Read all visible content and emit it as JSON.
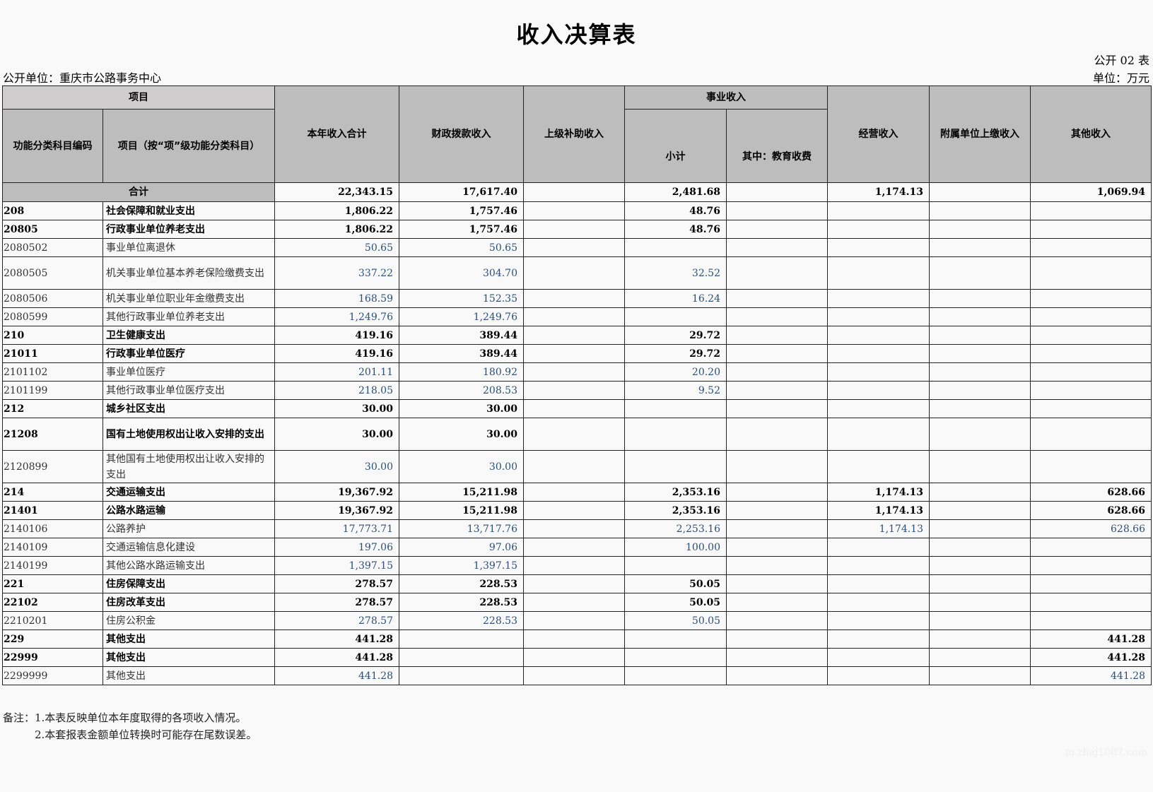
{
  "title": "收入决算表",
  "form_no": "公开 02 表",
  "unit_org": "公开单位：重庆市公路事务中心",
  "unit": "单位：万元",
  "headers": {
    "project": "项目",
    "code": "功能分类科目编码",
    "item": "项目（按“项”级功能分类科目）",
    "total": "本年收入合计",
    "fiscal": "财政拨款收入",
    "superior": "上级补助收入",
    "business": "事业收入",
    "subtotal": "小计",
    "edu": "其中：教育收费",
    "operating": "经营收入",
    "affiliated": "附属单位上缴收入",
    "other": "其他收入"
  },
  "total_row": {
    "label": "合计",
    "total": "22,343.15",
    "fiscal": "17,617.40",
    "superior": "",
    "subtotal": "2,481.68",
    "edu": "",
    "operating": "1,174.13",
    "affiliated": "",
    "other": "1,069.94"
  },
  "rows": [
    {
      "code": "208",
      "name": "社会保障和就业支出",
      "total": "1,806.22",
      "fiscal": "1,757.46",
      "subtotal": "48.76",
      "operating": "",
      "other": "",
      "bold": true
    },
    {
      "code": "20805",
      "name": "行政事业单位养老支出",
      "total": "1,806.22",
      "fiscal": "1,757.46",
      "subtotal": "48.76",
      "operating": "",
      "other": "",
      "bold": true
    },
    {
      "code": "2080502",
      "name": "事业单位离退休",
      "total": "50.65",
      "fiscal": "50.65",
      "subtotal": "",
      "operating": "",
      "other": ""
    },
    {
      "code": "2080505",
      "name": "机关事业单位基本养老保险缴费支出",
      "total": "337.22",
      "fiscal": "304.70",
      "subtotal": "32.52",
      "operating": "",
      "other": "",
      "double": true
    },
    {
      "code": "2080506",
      "name": "机关事业单位职业年金缴费支出",
      "total": "168.59",
      "fiscal": "152.35",
      "subtotal": "16.24",
      "operating": "",
      "other": ""
    },
    {
      "code": "2080599",
      "name": "其他行政事业单位养老支出",
      "total": "1,249.76",
      "fiscal": "1,249.76",
      "subtotal": "",
      "operating": "",
      "other": ""
    },
    {
      "code": "210",
      "name": "卫生健康支出",
      "total": "419.16",
      "fiscal": "389.44",
      "subtotal": "29.72",
      "operating": "",
      "other": "",
      "bold": true
    },
    {
      "code": "21011",
      "name": "行政事业单位医疗",
      "total": "419.16",
      "fiscal": "389.44",
      "subtotal": "29.72",
      "operating": "",
      "other": "",
      "bold": true
    },
    {
      "code": "2101102",
      "name": "事业单位医疗",
      "total": "201.11",
      "fiscal": "180.92",
      "subtotal": "20.20",
      "operating": "",
      "other": ""
    },
    {
      "code": "2101199",
      "name": "其他行政事业单位医疗支出",
      "total": "218.05",
      "fiscal": "208.53",
      "subtotal": "9.52",
      "operating": "",
      "other": ""
    },
    {
      "code": "212",
      "name": "城乡社区支出",
      "total": "30.00",
      "fiscal": "30.00",
      "subtotal": "",
      "operating": "",
      "other": "",
      "bold": true
    },
    {
      "code": "21208",
      "name": "国有土地使用权出让收入安排的支出",
      "total": "30.00",
      "fiscal": "30.00",
      "subtotal": "",
      "operating": "",
      "other": "",
      "bold": true,
      "double": true
    },
    {
      "code": "2120899",
      "name": "其他国有土地使用权出让收入安排的支出",
      "total": "30.00",
      "fiscal": "30.00",
      "subtotal": "",
      "operating": "",
      "other": "",
      "double": true
    },
    {
      "code": "214",
      "name": "交通运输支出",
      "total": "19,367.92",
      "fiscal": "15,211.98",
      "subtotal": "2,353.16",
      "operating": "1,174.13",
      "other": "628.66",
      "bold": true
    },
    {
      "code": "21401",
      "name": "公路水路运输",
      "total": "19,367.92",
      "fiscal": "15,211.98",
      "subtotal": "2,353.16",
      "operating": "1,174.13",
      "other": "628.66",
      "bold": true
    },
    {
      "code": "2140106",
      "name": "公路养护",
      "total": "17,773.71",
      "fiscal": "13,717.76",
      "subtotal": "2,253.16",
      "operating": "1,174.13",
      "other": "628.66"
    },
    {
      "code": "2140109",
      "name": "交通运输信息化建设",
      "total": "197.06",
      "fiscal": "97.06",
      "subtotal": "100.00",
      "operating": "",
      "other": ""
    },
    {
      "code": "2140199",
      "name": "其他公路水路运输支出",
      "total": "1,397.15",
      "fiscal": "1,397.15",
      "subtotal": "",
      "operating": "",
      "other": ""
    },
    {
      "code": "221",
      "name": "住房保障支出",
      "total": "278.57",
      "fiscal": "228.53",
      "subtotal": "50.05",
      "operating": "",
      "other": "",
      "bold": true
    },
    {
      "code": "22102",
      "name": "住房改革支出",
      "total": "278.57",
      "fiscal": "228.53",
      "subtotal": "50.05",
      "operating": "",
      "other": "",
      "bold": true
    },
    {
      "code": "2210201",
      "name": "住房公积金",
      "total": "278.57",
      "fiscal": "228.53",
      "subtotal": "50.05",
      "operating": "",
      "other": ""
    },
    {
      "code": "229",
      "name": "其他支出",
      "total": "441.28",
      "fiscal": "",
      "subtotal": "",
      "operating": "",
      "other": "441.28",
      "bold": true
    },
    {
      "code": "22999",
      "name": "其他支出",
      "total": "441.28",
      "fiscal": "",
      "subtotal": "",
      "operating": "",
      "other": "441.28",
      "bold": true
    },
    {
      "code": "2299999",
      "name": "其他支出",
      "total": "441.28",
      "fiscal": "",
      "subtotal": "",
      "operating": "",
      "other": "441.28"
    }
  ],
  "notes": [
    "备注：1.本表反映单位本年度取得的各项收入情况。",
    "2.本套报表金额单位转换时可能存在尾数误差。"
  ],
  "watermark": "m.zhaj1007.com"
}
